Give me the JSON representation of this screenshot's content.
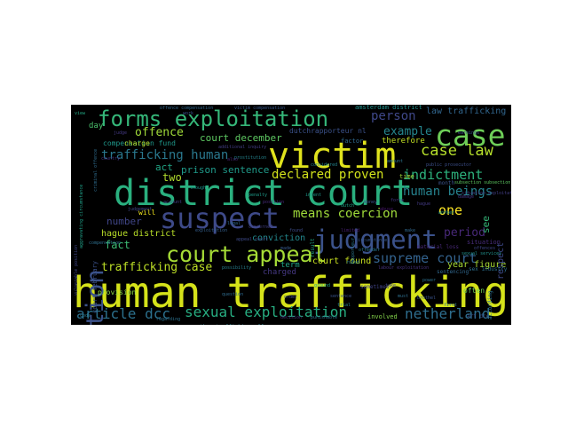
{
  "words": [
    {
      "id": "human-trafficking",
      "text": "human trafficking",
      "color": "#d5e21a"
    },
    {
      "id": "district-court",
      "text": "district court",
      "color": "#2ab07f"
    },
    {
      "id": "victim",
      "text": "victim",
      "color": "#e0e31d"
    },
    {
      "id": "judgment",
      "text": "judgment",
      "color": "#3b528b"
    },
    {
      "id": "suspect",
      "text": "suspect",
      "color": "#3e4a89"
    },
    {
      "id": "forms-exploitation",
      "text": "forms exploitation",
      "color": "#35b779"
    },
    {
      "id": "case",
      "text": "case",
      "color": "#6ece58"
    },
    {
      "id": "court-appeal",
      "text": "court appeal",
      "color": "#a5db36"
    },
    {
      "id": "subsection",
      "text": "subsection",
      "color": "#3b528b"
    },
    {
      "id": "case-law",
      "text": "case law",
      "color": "#b5de2b"
    },
    {
      "id": "indictment",
      "text": "indictment",
      "color": "#2db27d"
    },
    {
      "id": "human-beings",
      "text": "human beings",
      "color": "#26828e"
    },
    {
      "id": "means-coercion",
      "text": "means coercion",
      "color": "#9fda3a"
    },
    {
      "id": "sexual-exploitation",
      "text": "sexual exploitation",
      "color": "#27ad81"
    },
    {
      "id": "article-dcc",
      "text": "article dcc",
      "color": "#2c718e"
    },
    {
      "id": "netherland",
      "text": "netherland",
      "color": "#2e6e8e"
    },
    {
      "id": "supreme-court",
      "text": "supreme court",
      "color": "#33628d"
    },
    {
      "id": "trafficking-human",
      "text": "trafficking human",
      "color": "#2a788e"
    },
    {
      "id": "declared-proven",
      "text": "declared proven",
      "color": "#d2e21b"
    },
    {
      "id": "trafficking-case",
      "text": "trafficking case",
      "color": "#bddf26"
    },
    {
      "id": "offence",
      "text": "offence",
      "color": "#a0da39"
    },
    {
      "id": "person",
      "text": "person",
      "color": "#3f4889"
    },
    {
      "id": "example",
      "text": "example",
      "color": "#24868e"
    },
    {
      "id": "one",
      "text": "one",
      "color": "#fde725"
    },
    {
      "id": "period",
      "text": "period",
      "color": "#482979"
    },
    {
      "id": "court-december",
      "text": "court december",
      "color": "#5ec962"
    },
    {
      "id": "prison-sentence",
      "text": "prison sentence",
      "color": "#1f9a8a"
    },
    {
      "id": "act",
      "text": "act",
      "color": "#21a685"
    },
    {
      "id": "two",
      "text": "two",
      "color": "#b2dd2d"
    },
    {
      "id": "number",
      "text": "number",
      "color": "#404688"
    },
    {
      "id": "fact",
      "text": "fact",
      "color": "#3dbc74"
    },
    {
      "id": "hague-district",
      "text": "hague district",
      "color": "#b8de29"
    },
    {
      "id": "conviction",
      "text": "conviction",
      "color": "#23888e"
    },
    {
      "id": "court-found",
      "text": "court found",
      "color": "#c8e020"
    },
    {
      "id": "law-trafficking",
      "text": "law trafficking",
      "color": "#31668e"
    },
    {
      "id": "therefore",
      "text": "therefore",
      "color": "#c2df23"
    },
    {
      "id": "year-figure",
      "text": "year figure",
      "color": "#a8db34"
    },
    {
      "id": "see",
      "text": "see",
      "color": "#35b779"
    },
    {
      "id": "respect",
      "text": "respect",
      "color": "#3e4989"
    },
    {
      "id": "compensation-fund",
      "text": "compensation fund",
      "color": "#1f988b"
    },
    {
      "id": "charged",
      "text": "charged",
      "color": "#453882"
    },
    {
      "id": "term",
      "text": "term",
      "color": "#20a486"
    },
    {
      "id": "day",
      "text": "day",
      "color": "#4ac16d"
    },
    {
      "id": "charge",
      "text": "charge",
      "color": "#bade28"
    },
    {
      "id": "provision",
      "text": "provision",
      "color": "#8bd646"
    },
    {
      "id": "dutchrapporteur-nl",
      "text": "dutchrapporteur nl",
      "color": "#3b528b"
    },
    {
      "id": "court-february",
      "text": "court february",
      "color": "#3b528b"
    },
    {
      "id": "involved",
      "text": "involved",
      "color": "#84d44b"
    },
    {
      "id": "amsterdam-district",
      "text": "amsterdam district",
      "color": "#21918c"
    },
    {
      "id": "another-trafficking-offence",
      "text": "another trafficking offence",
      "color": "#27808e"
    },
    {
      "id": "will",
      "text": "will",
      "color": "#f1e51d"
    },
    {
      "id": "month",
      "text": "month",
      "color": "#3b528b"
    },
    {
      "id": "time",
      "text": "time",
      "color": "#a0da39"
    },
    {
      "id": "factor",
      "text": "factor",
      "color": "#306a8e"
    },
    {
      "id": "often",
      "text": "often",
      "color": "#6ece58"
    },
    {
      "id": "sex-industry",
      "text": "sex industry",
      "color": "#2d708e"
    },
    {
      "id": "situation",
      "text": "situation",
      "color": "#472c7a"
    },
    {
      "id": "material-loss",
      "text": "material loss",
      "color": "#482878"
    },
    {
      "id": "art-dcc",
      "text": "art dcc",
      "color": "#3b528b"
    },
    {
      "id": "result",
      "text": "result",
      "color": "#21a685"
    },
    {
      "id": "sentencing",
      "text": "sentencing",
      "color": "#31688e"
    },
    {
      "id": "according",
      "text": "according",
      "color": "#2c738e"
    },
    {
      "id": "sometimes",
      "text": "sometimes",
      "color": "#414487"
    },
    {
      "id": "offence-compensation",
      "text": "offence compensation",
      "color": "#31688e"
    },
    {
      "id": "circumstance",
      "text": "circumstance",
      "color": "#38598c"
    },
    {
      "id": "offender",
      "text": "offender",
      "color": "#2a788e"
    },
    {
      "id": "judge",
      "text": "judge",
      "color": "#443983"
    },
    {
      "id": "country",
      "text": "country",
      "color": "#46307e"
    },
    {
      "id": "vulnerable-position",
      "text": "vulnerable position",
      "color": "#404688"
    },
    {
      "id": "aggravating-circumstance",
      "text": "aggravating circumstance",
      "color": "#1fa088"
    },
    {
      "id": "criminal-offence",
      "text": "criminal offence",
      "color": "#2f6c8e"
    },
    {
      "id": "exploitation",
      "text": "exploitation",
      "color": "#355f8d"
    },
    {
      "id": "situation-exploitation",
      "text": "situation exploitation",
      "color": "#433e85"
    },
    {
      "id": "subsection-subsection",
      "text": "subsection subsection",
      "color": "#5ec962"
    },
    {
      "id": "though",
      "text": "though",
      "color": "#20938c"
    },
    {
      "id": "additional-inquiry",
      "text": "additional inquiry",
      "color": "#433d84"
    },
    {
      "id": "compensation",
      "text": "compensation",
      "color": "#2e6f8e"
    },
    {
      "id": "possibility",
      "text": "possibility",
      "color": "#277f8e"
    },
    {
      "id": "judgement",
      "text": "judgement",
      "color": "#3f4788"
    },
    {
      "id": "concerned",
      "text": "concerned",
      "color": "#424186"
    },
    {
      "id": "prostitution",
      "text": "prostitution",
      "color": "#25848e"
    },
    {
      "id": "labour-exploitation",
      "text": "labour exploitation",
      "color": "#46337f"
    },
    {
      "id": "sexual-services",
      "text": "sexual services",
      "color": "#21918c"
    },
    {
      "id": "brothel",
      "text": "brothel",
      "color": "#3a548c"
    },
    {
      "id": "make",
      "text": "make",
      "color": "#31688e"
    },
    {
      "id": "dutch",
      "text": "dutch",
      "color": "#20a486"
    },
    {
      "id": "rapporteur",
      "text": "rapporteur",
      "color": "#2a768e"
    },
    {
      "id": "appeal-court",
      "text": "appeal court",
      "color": "#3e4a89"
    },
    {
      "id": "limited",
      "text": "limited",
      "color": "#482173"
    },
    {
      "id": "penalty",
      "text": "penalty",
      "color": "#1e9b8a"
    },
    {
      "id": "force",
      "text": "force",
      "color": "#443a83"
    },
    {
      "id": "amount",
      "text": "amount",
      "color": "#2b748e"
    },
    {
      "id": "public-prosecutor",
      "text": "public prosecutor",
      "color": "#3c4f8a"
    },
    {
      "id": "victim-compensation",
      "text": "victim compensation",
      "color": "#38598c"
    },
    {
      "id": "regarding",
      "text": "regarding",
      "color": "#2c718e"
    },
    {
      "id": "damage",
      "text": "damage",
      "color": "#453581"
    },
    {
      "id": "ruled",
      "text": "ruled",
      "color": "#287d8e"
    },
    {
      "id": "found",
      "text": "found",
      "color": "#3d4d8a"
    },
    {
      "id": "take",
      "text": "take",
      "color": "#404588"
    },
    {
      "id": "ground",
      "text": "ground",
      "color": "#22a785"
    },
    {
      "id": "earnings",
      "text": "earnings",
      "color": "#3b528b"
    },
    {
      "id": "worker",
      "text": "worker",
      "color": "#1f998a"
    },
    {
      "id": "abuse",
      "text": "abuse",
      "color": "#48186a"
    },
    {
      "id": "power",
      "text": "power",
      "color": "#2d708e"
    },
    {
      "id": "hague",
      "text": "hague",
      "color": "#443b84"
    },
    {
      "id": "sentence",
      "text": "sentence",
      "color": "#3a548c"
    },
    {
      "id": "must",
      "text": "must",
      "color": "#2e6e8e"
    },
    {
      "id": "trial",
      "text": "trial",
      "color": "#26828e"
    },
    {
      "id": "order",
      "text": "order",
      "color": "#3e4989"
    },
    {
      "id": "first",
      "text": "first",
      "color": "#2a768e"
    },
    {
      "id": "decision",
      "text": "decision",
      "color": "#45337d"
    },
    {
      "id": "punishable",
      "text": "punishable",
      "color": "#2c728e"
    },
    {
      "id": "also",
      "text": "also",
      "color": "#482475"
    },
    {
      "id": "made",
      "text": "made",
      "color": "#375a8c"
    },
    {
      "id": "account",
      "text": "account",
      "color": "#433e85"
    },
    {
      "id": "considered",
      "text": "considered",
      "color": "#25858e"
    },
    {
      "id": "intent",
      "text": "intent",
      "color": "#1f978b"
    },
    {
      "id": "work",
      "text": "work",
      "color": "#3a548c"
    },
    {
      "id": "legal",
      "text": "legal",
      "color": "#31678e"
    },
    {
      "id": "position",
      "text": "position",
      "color": "#472a7a"
    },
    {
      "id": "money",
      "text": "money",
      "color": "#3c508b"
    },
    {
      "id": "question",
      "text": "question",
      "color": "#2f6b8e"
    },
    {
      "id": "view",
      "text": "view",
      "color": "#22a884"
    },
    {
      "id": "offences",
      "text": "offences",
      "color": "#404688"
    },
    {
      "id": "code",
      "text": "code",
      "color": "#2a788e"
    }
  ]
}
